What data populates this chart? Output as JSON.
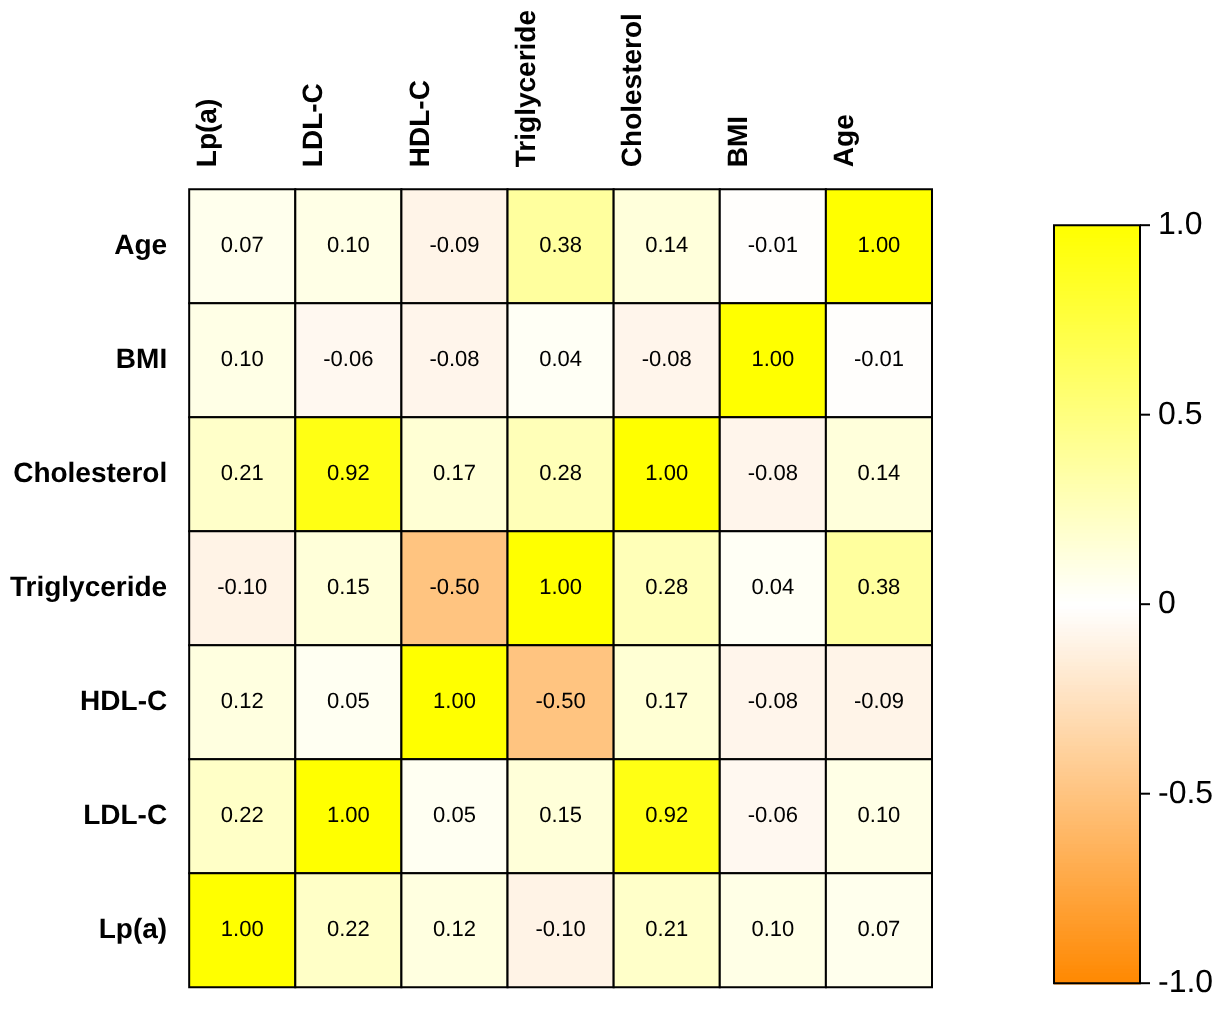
{
  "chart_data": {
    "type": "heatmap",
    "categories": [
      "Lp(a)",
      "LDL-C",
      "HDL-C",
      "Triglyceride",
      "Cholesterol",
      "BMI",
      "Age"
    ],
    "y_categories": [
      "Age",
      "BMI",
      "Cholesterol",
      "Triglyceride",
      "HDL-C",
      "LDL-C",
      "Lp(a)"
    ],
    "cells": [
      [
        0.07,
        0.1,
        -0.09,
        0.38,
        0.14,
        -0.01,
        1.0
      ],
      [
        0.1,
        -0.06,
        -0.08,
        0.04,
        -0.08,
        1.0,
        -0.01
      ],
      [
        0.21,
        0.92,
        0.17,
        0.28,
        1.0,
        -0.08,
        0.14
      ],
      [
        -0.1,
        0.15,
        -0.5,
        1.0,
        0.28,
        0.04,
        0.38
      ],
      [
        0.12,
        0.05,
        1.0,
        -0.5,
        0.17,
        -0.08,
        -0.09
      ],
      [
        0.22,
        1.0,
        0.05,
        0.15,
        0.92,
        -0.06,
        0.1
      ],
      [
        1.0,
        0.22,
        0.12,
        -0.1,
        0.21,
        0.1,
        0.07
      ]
    ],
    "cell_labels": [
      [
        "0.07",
        "0.10",
        "-0.09",
        "0.38",
        "0.14",
        "-0.01",
        "1.00"
      ],
      [
        "0.10",
        "-0.06",
        "-0.08",
        "0.04",
        "-0.08",
        "1.00",
        "-0.01"
      ],
      [
        "0.21",
        "0.92",
        "0.17",
        "0.28",
        "1.00",
        "-0.08",
        "0.14"
      ],
      [
        "-0.10",
        "0.15",
        "-0.50",
        "1.00",
        "0.28",
        "0.04",
        "0.38"
      ],
      [
        "0.12",
        "0.05",
        "1.00",
        "-0.50",
        "0.17",
        "-0.08",
        "-0.09"
      ],
      [
        "0.22",
        "1.00",
        "0.05",
        "0.15",
        "0.92",
        "-0.06",
        "0.10"
      ],
      [
        "1.00",
        "0.22",
        "0.12",
        "-0.10",
        "0.21",
        "0.10",
        "0.07"
      ]
    ],
    "clim": [
      -1,
      1
    ],
    "cticks": [
      {
        "value": 1,
        "label": "1.0"
      },
      {
        "value": 0.5,
        "label": "0.5"
      },
      0,
      {
        "value": -0.5,
        "label": "-0.5"
      },
      {
        "value": -1,
        "label": "-1.0"
      }
    ]
  }
}
